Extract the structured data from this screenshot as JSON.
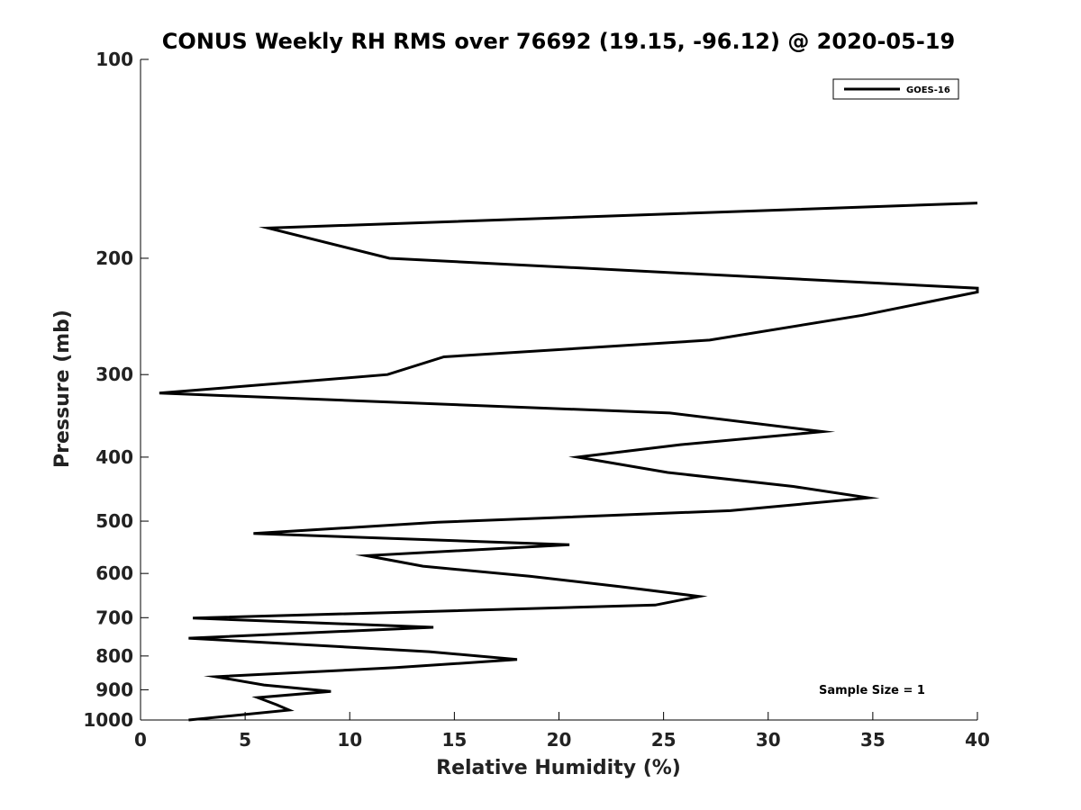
{
  "chart_data": {
    "type": "line",
    "title": "CONUS Weekly RH RMS over 76692 (19.15, -96.12) @ 2020-05-19",
    "xlabel": "Relative Humidity (%)",
    "ylabel": "Pressure (mb)",
    "xlim": [
      0,
      40
    ],
    "ylim": [
      1000,
      100
    ],
    "yscale": "log",
    "x_ticks": [
      0,
      5,
      10,
      15,
      20,
      25,
      30,
      35,
      40
    ],
    "y_ticks": [
      100,
      200,
      300,
      400,
      500,
      600,
      700,
      800,
      900,
      1000
    ],
    "grid": false,
    "legend_position": "top-right",
    "series": [
      {
        "name": "GOES-16",
        "color": "#000000",
        "points": [
          [
            40,
            165
          ],
          [
            6.1,
            180
          ],
          [
            11.9,
            200
          ],
          [
            40,
            222
          ],
          [
            40,
            225
          ],
          [
            34.5,
            244
          ],
          [
            27.2,
            266
          ],
          [
            14.5,
            282
          ],
          [
            11.8,
            300
          ],
          [
            0.9,
            320
          ],
          [
            25.3,
            343
          ],
          [
            32.6,
            366
          ],
          [
            25.8,
            383
          ],
          [
            20.9,
            400
          ],
          [
            25.2,
            422
          ],
          [
            31.2,
            443
          ],
          [
            34.8,
            461
          ],
          [
            28.2,
            482
          ],
          [
            14.2,
            502
          ],
          [
            5.4,
            522
          ],
          [
            20.5,
            543
          ],
          [
            10.8,
            564
          ],
          [
            13.5,
            585
          ],
          [
            18.6,
            606
          ],
          [
            22.9,
            628
          ],
          [
            26.7,
            650
          ],
          [
            24.6,
            670
          ],
          [
            2.5,
            701
          ],
          [
            14.0,
            724
          ],
          [
            2.3,
            752
          ],
          [
            13.8,
            788
          ],
          [
            18.0,
            810
          ],
          [
            12.2,
            833
          ],
          [
            3.6,
            860
          ],
          [
            5.9,
            885
          ],
          [
            9.1,
            905
          ],
          [
            5.6,
            925
          ],
          [
            6.5,
            948
          ],
          [
            7.1,
            966
          ],
          [
            2.3,
            1000
          ]
        ]
      }
    ],
    "annotations": [
      "Sample Size = 1"
    ]
  }
}
